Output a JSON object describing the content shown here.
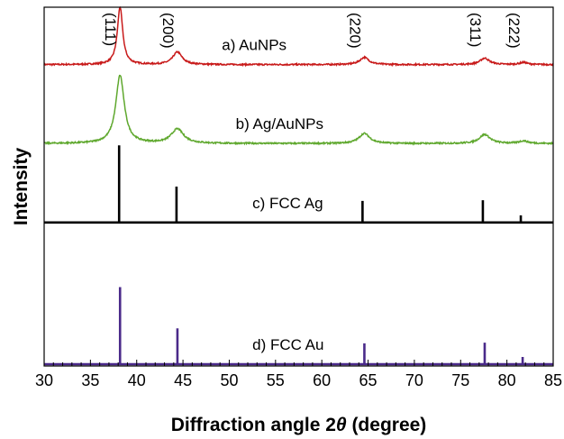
{
  "chart_data": {
    "type": "line",
    "title": "",
    "xlabel_prefix": "Diffraction angle 2",
    "xlabel_symbol": "θ",
    "xlabel_suffix": " (degree)",
    "ylabel": "Intensity",
    "xlim": [
      30,
      85
    ],
    "x_ticks": [
      30,
      35,
      40,
      45,
      50,
      55,
      60,
      65,
      70,
      75,
      80,
      85
    ],
    "y_ticks": "none",
    "grid": false,
    "legend": "none",
    "peak_labels": [
      {
        "text": "(111)",
        "x": 38.2
      },
      {
        "text": "(200)",
        "x": 44.4
      },
      {
        "text": "(220)",
        "x": 64.6
      },
      {
        "text": "(311)",
        "x": 77.6
      },
      {
        "text": "(222)",
        "x": 81.8
      }
    ],
    "series": [
      {
        "name": "a) AuNPs",
        "color": "#c81a1a",
        "kind": "broad",
        "baseline": 0.84,
        "label_x": 49.2,
        "peaks": [
          {
            "x": 38.2,
            "height": 0.16,
            "width": 0.35
          },
          {
            "x": 44.4,
            "height": 0.035,
            "width": 0.6
          },
          {
            "x": 64.6,
            "height": 0.02,
            "width": 0.6
          },
          {
            "x": 77.6,
            "height": 0.018,
            "width": 0.6
          },
          {
            "x": 81.8,
            "height": 0.006,
            "width": 0.5
          }
        ]
      },
      {
        "name": "b) Ag/AuNPs",
        "color": "#5fa82e",
        "kind": "broad",
        "baseline": 0.62,
        "label_x": 50.7,
        "peaks": [
          {
            "x": 38.2,
            "height": 0.19,
            "width": 0.55
          },
          {
            "x": 44.4,
            "height": 0.04,
            "width": 0.8
          },
          {
            "x": 64.6,
            "height": 0.028,
            "width": 0.7
          },
          {
            "x": 77.6,
            "height": 0.025,
            "width": 0.7
          },
          {
            "x": 81.8,
            "height": 0.007,
            "width": 0.6
          }
        ]
      },
      {
        "name": "c) FCC Ag",
        "color": "#000000",
        "kind": "stick",
        "baseline": 0.4,
        "label_x": 52.5,
        "peaks": [
          {
            "x": 38.1,
            "height": 0.215
          },
          {
            "x": 44.3,
            "height": 0.1
          },
          {
            "x": 64.4,
            "height": 0.06
          },
          {
            "x": 77.4,
            "height": 0.062
          },
          {
            "x": 81.5,
            "height": 0.02
          }
        ]
      },
      {
        "name": "d) FCC Au",
        "color": "#4a2a8a",
        "kind": "stick",
        "baseline": 0.005,
        "label_x": 52.5,
        "peaks": [
          {
            "x": 38.2,
            "height": 0.215
          },
          {
            "x": 44.4,
            "height": 0.1
          },
          {
            "x": 64.6,
            "height": 0.058
          },
          {
            "x": 77.6,
            "height": 0.06
          },
          {
            "x": 81.7,
            "height": 0.02
          }
        ]
      }
    ]
  }
}
